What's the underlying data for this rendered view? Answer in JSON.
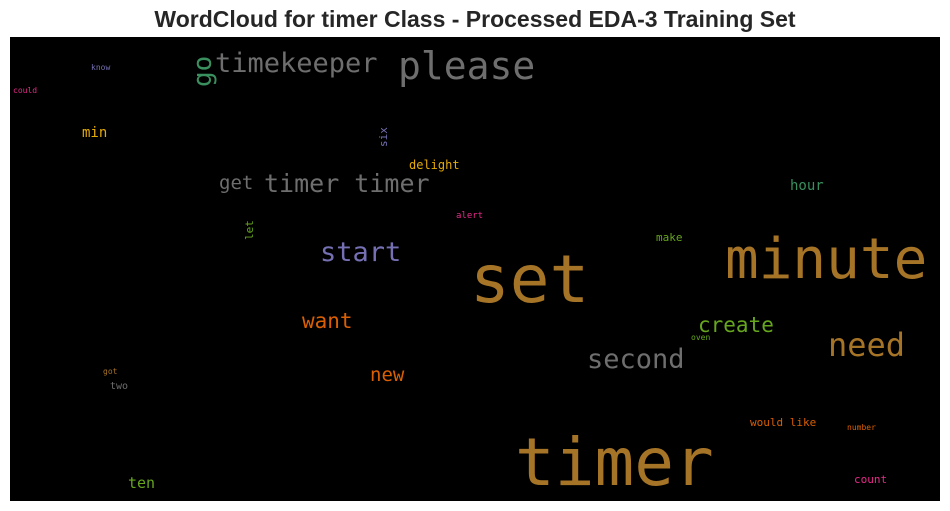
{
  "title": "WordCloud for timer Class - Processed EDA-3 Training Set",
  "palette": {
    "background": "#000000",
    "gold": "#a67427",
    "gray": "#6e6e6e",
    "green": "#3a8f5f",
    "purple": "#7570b3",
    "orange": "#d95f02",
    "lime": "#66a61e",
    "pink": "#e7298a",
    "yellow": "#e6ab02"
  },
  "words": {
    "timer_big": "timer",
    "set": "set",
    "minute": "minute",
    "please": "please",
    "timekeeper": "timekeeper",
    "go": "go",
    "timer_timer": "timer timer",
    "get": "get",
    "start": "start",
    "need": "need",
    "second": "second",
    "create": "create",
    "want": "want",
    "new": "new",
    "hour": "hour",
    "min": "min",
    "delight": "delight",
    "six": "six",
    "let": "let",
    "alert": "alert",
    "make": "make",
    "oven": "oven",
    "got": "got",
    "two": "two",
    "would_like": "would like",
    "number": "number",
    "count": "count",
    "ten": "ten",
    "know": "know",
    "could": "could"
  }
}
